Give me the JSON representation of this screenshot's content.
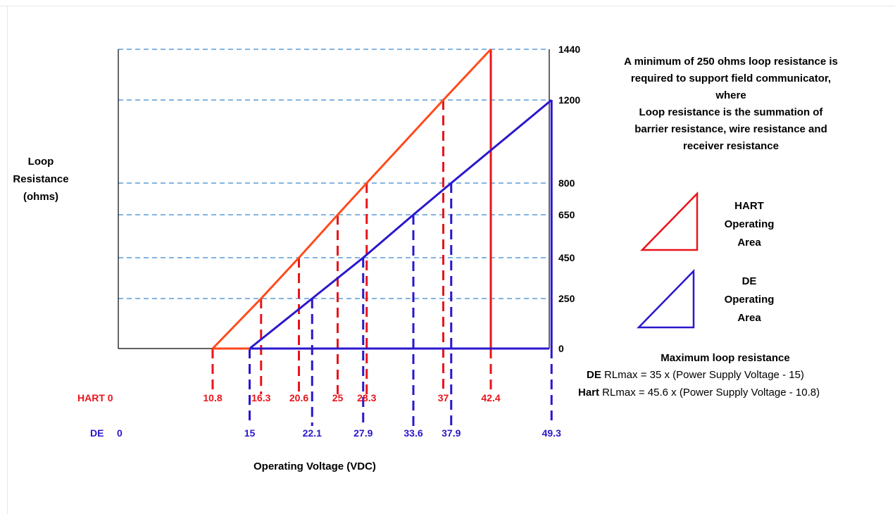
{
  "chart_data": {
    "type": "line",
    "title": "",
    "xlabel": "Operating Voltage (VDC)",
    "ylabel": "Loop Resistance (ohms)",
    "ylim": [
      0,
      1440
    ],
    "y_ticks": [
      "1440",
      "1200",
      "800",
      "650",
      "450",
      "250",
      "0"
    ],
    "y_tick_values": [
      1440,
      1200,
      800,
      650,
      450,
      250,
      0
    ],
    "series": [
      {
        "name": "HART",
        "color": "#ff4a1c",
        "row_label": "HART",
        "zero_label": "0",
        "x": [
          10.8,
          16.3,
          20.6,
          25,
          28.3,
          37,
          42.4
        ],
        "y": [
          0,
          250,
          450,
          650,
          800,
          1200,
          1440
        ],
        "tick_labels": [
          "10.8",
          "16.3",
          "20.6",
          "25",
          "28.3",
          "37",
          "42.4"
        ]
      },
      {
        "name": "DE",
        "color": "#2a17cc",
        "row_label": "DE",
        "zero_label": "0",
        "x": [
          15,
          22.1,
          27.9,
          33.6,
          37.9,
          49.3
        ],
        "y": [
          0,
          250,
          450,
          650,
          800,
          1200
        ],
        "tick_labels": [
          "15",
          "22.1",
          "27.9",
          "33.6",
          "37.9",
          "49.3"
        ]
      }
    ],
    "grid": "dashed horizontal at tick values",
    "note_lines": [
      "A minimum of 250 ohms loop resistance is",
      "required to support field communicator,",
      "where",
      "Loop resistance is the summation of",
      "barrier resistance, wire resistance and",
      "receiver resistance"
    ],
    "legend": [
      {
        "lines": [
          "HART",
          "Operating",
          "Area"
        ],
        "color": "#e8141b"
      },
      {
        "lines": [
          "DE",
          "Operating",
          "Area"
        ],
        "color": "#2a17cc"
      }
    ],
    "max_loop": {
      "title": "Maximum loop resistance",
      "de_prefix": "DE",
      "de_formula": " RLmax = 35 x (Power Supply Voltage - 15)",
      "hart_prefix": "Hart",
      "hart_formula": " RLmax = 45.6 x (Power Supply Voltage - 10.8)"
    },
    "ylabel_lines": [
      "Loop",
      "Resistance",
      "(ohms)"
    ]
  }
}
